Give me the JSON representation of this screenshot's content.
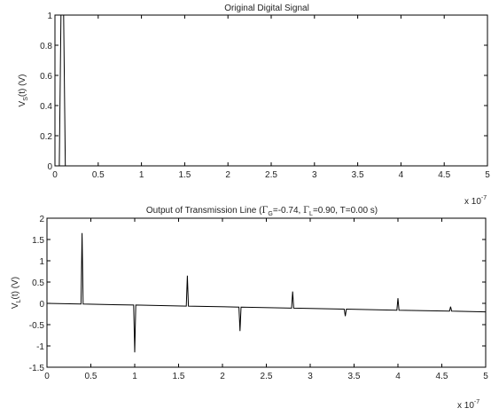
{
  "chart_data": [
    {
      "type": "line",
      "title": "Original Digital Signal",
      "ylabel": "V_S(t) (V)",
      "ylabel_main": "V",
      "ylabel_sub": "S",
      "ylabel_rest": "(t) (V)",
      "xlim": [
        0,
        5
      ],
      "ylim": [
        0,
        1
      ],
      "x_ticks": [
        0,
        0.5,
        1,
        1.5,
        2,
        2.5,
        3,
        3.5,
        4,
        4.5,
        5
      ],
      "x_tick_labels": [
        "0",
        "0.5",
        "1",
        "1.5",
        "2",
        "2.5",
        "3",
        "3.5",
        "4",
        "4.5",
        "5"
      ],
      "y_ticks": [
        0,
        0.2,
        0.4,
        0.6,
        0.8,
        1
      ],
      "y_tick_labels": [
        "0",
        "0.2",
        "0.4",
        "0.6",
        "0.8",
        "1"
      ],
      "x_multiplier": "x 10",
      "x_multiplier_exp": "-7",
      "grid": false,
      "line_color": "#000000",
      "series": [
        {
          "x": [
            0,
            0.05,
            0.07,
            0.1,
            0.12,
            5
          ],
          "y": [
            0,
            0,
            1,
            1,
            0,
            0
          ]
        }
      ]
    },
    {
      "type": "line",
      "title": "Output of Transmission Line (Γ_G=-0.74, Γ_L=0.90, T=0.00 s)",
      "title_parts": [
        "Output of Transmission Line (",
        "Γ",
        "G",
        "=-0.74, ",
        "Γ",
        "L",
        "=0.90, T=0.00 s)"
      ],
      "ylabel": "V_L(t) (V)",
      "ylabel_main": "V",
      "ylabel_sub": "L",
      "ylabel_rest": "(t) (V)",
      "xlim": [
        0,
        5
      ],
      "ylim": [
        -1.5,
        2
      ],
      "x_ticks": [
        0,
        0.5,
        1,
        1.5,
        2,
        2.5,
        3,
        3.5,
        4,
        4.5,
        5
      ],
      "x_tick_labels": [
        "0",
        "0.5",
        "1",
        "1.5",
        "2",
        "2.5",
        "3",
        "3.5",
        "4",
        "4.5",
        "5"
      ],
      "y_ticks": [
        -1.5,
        -1,
        -0.5,
        0,
        0.5,
        1,
        1.5,
        2
      ],
      "y_tick_labels": [
        "-1.5",
        "-1",
        "-0.5",
        "0",
        "0.5",
        "1",
        "1.5",
        "2"
      ],
      "x_multiplier": "x 10",
      "x_multiplier_exp": "-7",
      "grid": false,
      "line_color": "#000000",
      "pulses": [
        {
          "x": 0.4,
          "peak": 1.65
        },
        {
          "x": 1.0,
          "peak": -1.15
        },
        {
          "x": 1.6,
          "peak": 0.65
        },
        {
          "x": 2.2,
          "peak": -0.65
        },
        {
          "x": 2.8,
          "peak": 0.28
        },
        {
          "x": 3.4,
          "peak": -0.3
        },
        {
          "x": 4.0,
          "peak": 0.12
        },
        {
          "x": 4.6,
          "peak": -0.08
        }
      ],
      "baseline": [
        {
          "x": 0,
          "y": 0.0
        },
        {
          "x": 5,
          "y": -0.2
        }
      ]
    }
  ]
}
